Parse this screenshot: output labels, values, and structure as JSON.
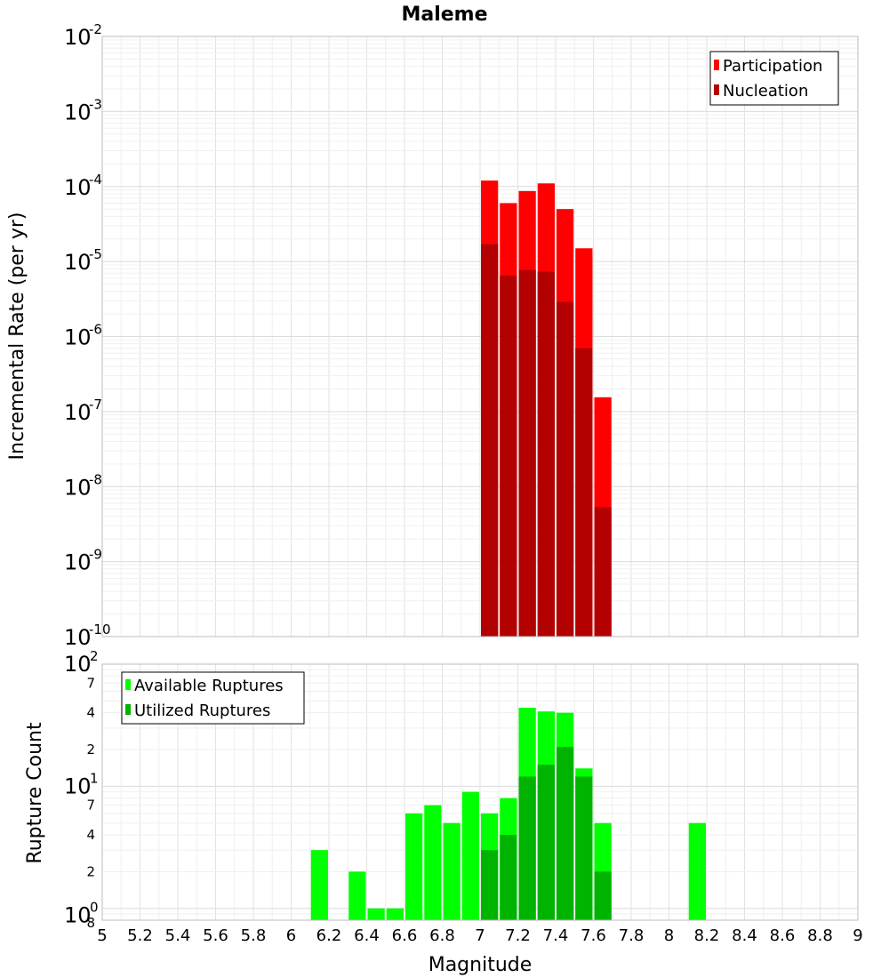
{
  "chart_data": [
    {
      "type": "bar",
      "title": "Maleme",
      "xlabel": "Magnitude",
      "ylabel": "Incremental Rate (per yr)",
      "yscale": "log",
      "ylim": [
        1e-10,
        0.01
      ],
      "xlim": [
        5,
        9
      ],
      "bin_width": 0.1,
      "legend_position": "top-right",
      "bin_centers": [
        7.05,
        7.15,
        7.25,
        7.35,
        7.45,
        7.55,
        7.65
      ],
      "series": [
        {
          "name": "Participation",
          "color": "#ff0000",
          "values": [
            0.00012,
            6e-05,
            8.7e-05,
            0.00011,
            5e-05,
            1.5e-05,
            1.55e-07
          ]
        },
        {
          "name": "Nucleation",
          "color": "#b30000",
          "values": [
            1.7e-05,
            6.5e-06,
            7.7e-06,
            7.3e-06,
            2.9e-06,
            7e-07,
            5.3e-09
          ]
        }
      ],
      "decade_labels": [
        {
          "base": "10",
          "exp": "-2"
        },
        {
          "base": "10",
          "exp": "-3"
        },
        {
          "base": "10",
          "exp": "-4"
        },
        {
          "base": "10",
          "exp": "-5"
        },
        {
          "base": "10",
          "exp": "-6"
        },
        {
          "base": "10",
          "exp": "-7"
        },
        {
          "base": "10",
          "exp": "-8"
        },
        {
          "base": "10",
          "exp": "-9"
        },
        {
          "base": "10",
          "exp": "-10"
        }
      ]
    },
    {
      "type": "bar",
      "title": "",
      "xlabel": "Magnitude",
      "ylabel": "Rupture Count",
      "yscale": "log",
      "ylim": [
        0.8,
        100
      ],
      "xlim": [
        5,
        9
      ],
      "bin_width": 0.1,
      "legend_position": "top-left",
      "bin_centers": [
        6.15,
        6.35,
        6.45,
        6.55,
        6.65,
        6.75,
        6.85,
        6.95,
        7.05,
        7.15,
        7.25,
        7.35,
        7.45,
        7.55,
        7.65,
        8.15
      ],
      "series": [
        {
          "name": "Available Ruptures",
          "color": "#00ff00",
          "values": [
            3,
            2,
            1,
            1,
            6,
            7,
            5,
            9,
            6,
            8,
            44,
            41,
            40,
            14,
            5,
            5
          ]
        },
        {
          "name": "Utilized Ruptures",
          "color": "#00b300",
          "values": [
            0,
            0,
            0,
            0,
            0,
            0,
            0,
            0,
            3,
            4,
            12,
            15,
            21,
            12,
            2,
            0
          ]
        }
      ],
      "decade_labels": [
        {
          "base": "10",
          "exp": "2"
        },
        {
          "base": "10",
          "exp": "1"
        },
        {
          "base": "10",
          "exp": "0"
        }
      ],
      "minor_tick_labels": [
        {
          "value": 70,
          "label": "7"
        },
        {
          "value": 40,
          "label": "4"
        },
        {
          "value": 20,
          "label": "2"
        },
        {
          "value": 7,
          "label": "7"
        },
        {
          "value": 4,
          "label": "4"
        },
        {
          "value": 2,
          "label": "2"
        },
        {
          "value": 0.8,
          "label": "8"
        }
      ],
      "x_tick_labels": [
        "5",
        "5.2",
        "5.4",
        "5.6",
        "5.8",
        "6",
        "6.2",
        "6.4",
        "6.6",
        "6.8",
        "7",
        "7.2",
        "7.4",
        "7.6",
        "7.8",
        "8",
        "8.2",
        "8.4",
        "8.6",
        "8.8",
        "9"
      ]
    }
  ]
}
